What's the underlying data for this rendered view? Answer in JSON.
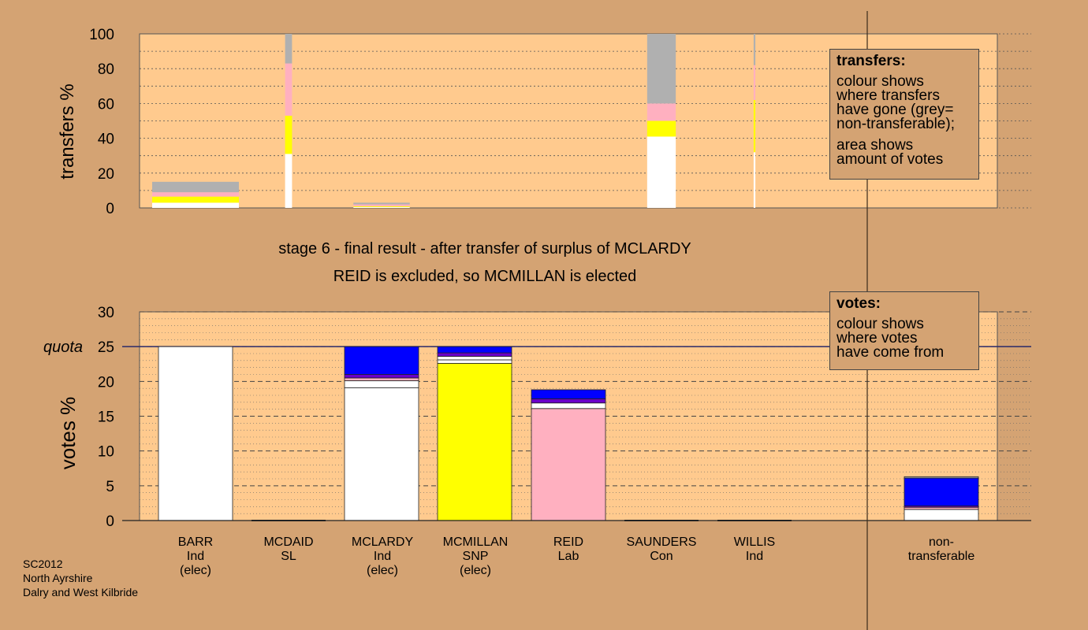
{
  "colors": {
    "background": "#d4a373",
    "plot_area": "#ffca8e",
    "Ind": "#ffffff",
    "SNP": "#ffff00",
    "Lab": "#ffb0c0",
    "Con": "#0000ff",
    "SL": "#800080",
    "non_transferable": "#b0b0b0",
    "mixed": "#6a00c8"
  },
  "headline": {
    "line1": "stage 6 - final result - after transfer of surplus of MCLARDY",
    "line2": "REID is excluded, so MCMILLAN is elected"
  },
  "source": {
    "line1": "SC2012",
    "line2": "North Ayrshire",
    "line3": "Dalry and West Kilbride"
  },
  "legends": {
    "transfers": {
      "title": "transfers:",
      "lines1": [
        "colour shows",
        "where transfers",
        "have gone (grey=",
        "non-transferable);"
      ],
      "lines2": [
        "area shows",
        "amount of votes"
      ]
    },
    "votes": {
      "title": "votes:",
      "lines": [
        "colour shows",
        "where votes",
        "have come from"
      ]
    }
  },
  "candidates": [
    {
      "name": "BARR",
      "party": "Ind",
      "status": "(elec)"
    },
    {
      "name": "MCDAID",
      "party": "SL",
      "status": ""
    },
    {
      "name": "MCLARDY",
      "party": "Ind",
      "status": "(elec)"
    },
    {
      "name": "MCMILLAN",
      "party": "SNP",
      "status": "(elec)"
    },
    {
      "name": "REID",
      "party": "Lab",
      "status": ""
    },
    {
      "name": "SAUNDERS",
      "party": "Con",
      "status": ""
    },
    {
      "name": "WILLIS",
      "party": "Ind",
      "status": ""
    },
    {
      "name": "non-",
      "party": "transferable",
      "status": ""
    }
  ],
  "chart_data": [
    {
      "type": "bar",
      "ylabel": "transfers %",
      "ylim": [
        0,
        100
      ],
      "yticks": [
        0,
        20,
        40,
        60,
        80,
        100
      ],
      "grid": true,
      "note": "stacked transfer bars; bar width proportional to votes transferred",
      "bars": [
        {
          "candidate": "BARR",
          "width_share": 1.0,
          "segments": [
            {
              "from": 0,
              "to": 3,
              "color": "#ffffff"
            },
            {
              "from": 3,
              "to": 6.5,
              "color": "#ffff00"
            },
            {
              "from": 6.5,
              "to": 9,
              "color": "#ffb0c0"
            },
            {
              "from": 9,
              "to": 15,
              "color": "#b0b0b0"
            }
          ]
        },
        {
          "candidate": "MCDAID",
          "width_share": 0.08,
          "segments": [
            {
              "from": 0,
              "to": 31,
              "color": "#ffffff"
            },
            {
              "from": 31,
              "to": 53,
              "color": "#ffff00"
            },
            {
              "from": 53,
              "to": 83,
              "color": "#ffb0c0"
            },
            {
              "from": 83,
              "to": 100,
              "color": "#b0b0b0"
            }
          ]
        },
        {
          "candidate": "MCLARDY",
          "width_share": 0.65,
          "segments": [
            {
              "from": 0,
              "to": 0.5,
              "color": "#ffffff"
            },
            {
              "from": 0.5,
              "to": 1,
              "color": "#ffff00"
            },
            {
              "from": 1,
              "to": 2,
              "color": "#ffb0c0"
            },
            {
              "from": 2,
              "to": 3,
              "color": "#b0b0b0"
            }
          ]
        },
        {
          "candidate": "SAUNDERS",
          "width_share": 0.33,
          "segments": [
            {
              "from": 0,
              "to": 41,
              "color": "#ffffff"
            },
            {
              "from": 41,
              "to": 50,
              "color": "#ffff00"
            },
            {
              "from": 50,
              "to": 60,
              "color": "#ffb0c0"
            },
            {
              "from": 60,
              "to": 100,
              "color": "#b0b0b0"
            }
          ]
        },
        {
          "candidate": "WILLIS",
          "width_share": 0.02,
          "segments": [
            {
              "from": 0,
              "to": 32,
              "color": "#ffffff"
            },
            {
              "from": 32,
              "to": 62,
              "color": "#ffff00"
            },
            {
              "from": 62,
              "to": 82,
              "color": "#ffb0c0"
            },
            {
              "from": 82,
              "to": 100,
              "color": "#b0b0b0"
            }
          ]
        }
      ]
    },
    {
      "type": "bar",
      "ylabel": "votes %",
      "ylim": [
        0,
        30
      ],
      "yticks": [
        0,
        5,
        10,
        15,
        20,
        25,
        30
      ],
      "quota": 25,
      "quota_label": "quota",
      "grid": true,
      "categories": [
        "BARR",
        "MCDAID",
        "MCLARDY",
        "MCMILLAN",
        "REID",
        "SAUNDERS",
        "WILLIS",
        "non-transferable"
      ],
      "bars": [
        {
          "candidate": "BARR",
          "segments": [
            {
              "from": 0,
              "to": 25,
              "color": "#ffffff"
            }
          ]
        },
        {
          "candidate": "MCDAID",
          "segments": []
        },
        {
          "candidate": "MCLARDY",
          "segments": [
            {
              "from": 0,
              "to": 19.1,
              "color": "#ffffff"
            },
            {
              "from": 19.1,
              "to": 20.1,
              "color": "#ffffff"
            },
            {
              "from": 20.1,
              "to": 20.5,
              "color": "#ffb0c0"
            },
            {
              "from": 20.5,
              "to": 21.0,
              "color": "#6a00c8"
            },
            {
              "from": 21.0,
              "to": 25,
              "color": "#0000ff"
            }
          ]
        },
        {
          "candidate": "MCMILLAN",
          "segments": [
            {
              "from": 0,
              "to": 22.6,
              "color": "#ffff00"
            },
            {
              "from": 22.6,
              "to": 23.1,
              "color": "#ffffff"
            },
            {
              "from": 23.1,
              "to": 23.6,
              "color": "#ffffff"
            },
            {
              "from": 23.6,
              "to": 24.1,
              "color": "#6a00c8"
            },
            {
              "from": 24.1,
              "to": 25,
              "color": "#0000ff"
            }
          ]
        },
        {
          "candidate": "REID",
          "segments": [
            {
              "from": 0,
              "to": 16.1,
              "color": "#ffb0c0"
            },
            {
              "from": 16.1,
              "to": 16.9,
              "color": "#ffffff"
            },
            {
              "from": 16.9,
              "to": 17.5,
              "color": "#6a00c8"
            },
            {
              "from": 17.5,
              "to": 18.8,
              "color": "#0000ff"
            }
          ]
        },
        {
          "candidate": "SAUNDERS",
          "segments": []
        },
        {
          "candidate": "WILLIS",
          "segments": []
        },
        {
          "candidate": "non-transferable",
          "segments": [
            {
              "from": 0,
              "to": 1.6,
              "color": "#ffffff"
            },
            {
              "from": 1.6,
              "to": 1.9,
              "color": "#ffb0c0"
            },
            {
              "from": 1.9,
              "to": 2.1,
              "color": "#6a00c8"
            },
            {
              "from": 2.1,
              "to": 6.1,
              "color": "#0000ff"
            },
            {
              "from": 6.1,
              "to": 6.3,
              "color": "#b0b0b0"
            }
          ]
        }
      ]
    }
  ]
}
